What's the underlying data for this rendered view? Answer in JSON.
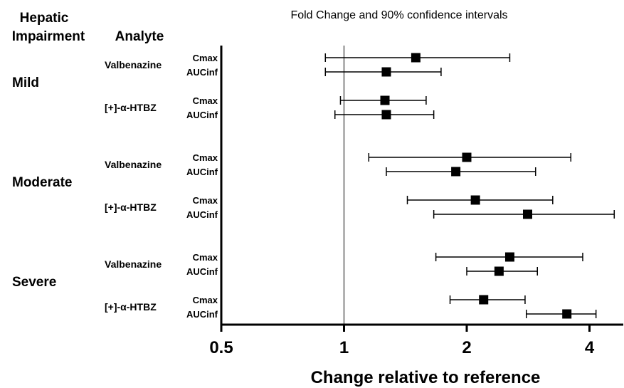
{
  "headers": {
    "hepatic": [
      "Hepatic",
      "Impairment"
    ],
    "analyte": "Analyte"
  },
  "chart_data": {
    "type": "forest",
    "title": "Fold Change and 90% confidence intervals",
    "xlabel": "Change relative to reference",
    "xscale": "log2",
    "xlim": [
      0.5,
      4.6
    ],
    "xticks": [
      0.5,
      1,
      2,
      4
    ],
    "xtick_labels": [
      "0.5",
      "1",
      "2",
      "4"
    ],
    "reference_line": 1,
    "groups": [
      {
        "name": "Mild",
        "analytes": [
          {
            "name": "Valbenazine",
            "rows": [
              {
                "metric": "Cmax",
                "value": 1.5,
                "lower": 0.9,
                "upper": 2.55
              },
              {
                "metric": "AUCinf",
                "value": 1.27,
                "lower": 0.9,
                "upper": 1.73
              }
            ]
          },
          {
            "name": "[+]-α-HTBZ",
            "rows": [
              {
                "metric": "Cmax",
                "value": 1.26,
                "lower": 0.98,
                "upper": 1.59
              },
              {
                "metric": "AUCinf",
                "value": 1.27,
                "lower": 0.95,
                "upper": 1.66
              }
            ]
          }
        ]
      },
      {
        "name": "Moderate",
        "analytes": [
          {
            "name": "Valbenazine",
            "rows": [
              {
                "metric": "Cmax",
                "value": 2.0,
                "lower": 1.15,
                "upper": 3.6
              },
              {
                "metric": "AUCinf",
                "value": 1.88,
                "lower": 1.27,
                "upper": 2.95
              }
            ]
          },
          {
            "name": "[+]-α-HTBZ",
            "rows": [
              {
                "metric": "Cmax",
                "value": 2.1,
                "lower": 1.43,
                "upper": 3.25
              },
              {
                "metric": "AUCinf",
                "value": 2.82,
                "lower": 1.66,
                "upper": 4.6
              }
            ]
          }
        ]
      },
      {
        "name": "Severe",
        "analytes": [
          {
            "name": "Valbenazine",
            "rows": [
              {
                "metric": "Cmax",
                "value": 2.55,
                "lower": 1.68,
                "upper": 3.85
              },
              {
                "metric": "AUCinf",
                "value": 2.4,
                "lower": 2.0,
                "upper": 2.98
              }
            ]
          },
          {
            "name": "[+]-α-HTBZ",
            "rows": [
              {
                "metric": "Cmax",
                "value": 2.2,
                "lower": 1.82,
                "upper": 2.78
              },
              {
                "metric": "AUCinf",
                "value": 3.52,
                "lower": 2.8,
                "upper": 4.15
              }
            ]
          }
        ]
      }
    ]
  }
}
